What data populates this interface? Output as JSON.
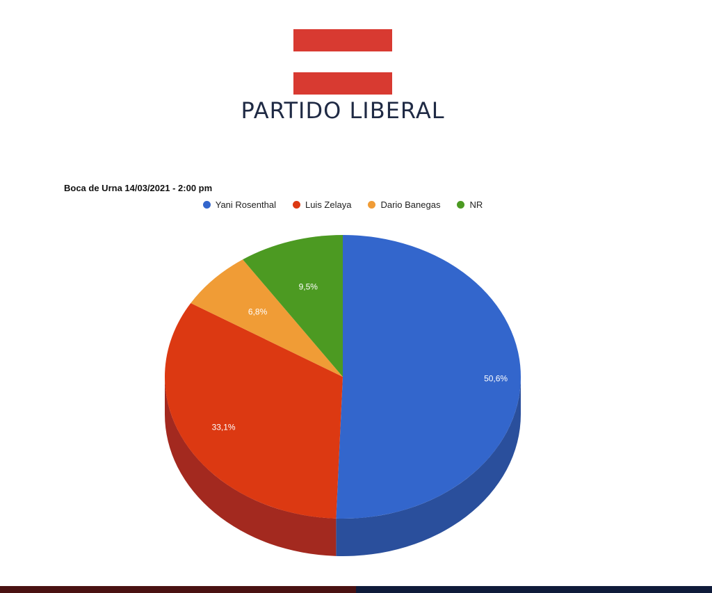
{
  "header": {
    "party_name": "PARTIDO LIBERAL",
    "flag_color": "#d83a31"
  },
  "chart_data": {
    "type": "pie",
    "title": "Boca de Urna 14/03/2021 - 2:00 pm",
    "legend_position": "top",
    "categories": [
      "Yani Rosenthal",
      "Luis Zelaya",
      "Dario Banegas",
      "NR"
    ],
    "values": [
      50.6,
      33.1,
      6.8,
      9.5
    ],
    "labels": [
      "50,6%",
      "33,1%",
      "6,8%",
      "9,5%"
    ],
    "colors": [
      "#3366cc",
      "#dc3912",
      "#f09c36",
      "#4c9a22"
    ],
    "side_colors": [
      "#2a4f9c",
      "#a3291f",
      "#b87324",
      "#357016"
    ],
    "three_d": true
  }
}
